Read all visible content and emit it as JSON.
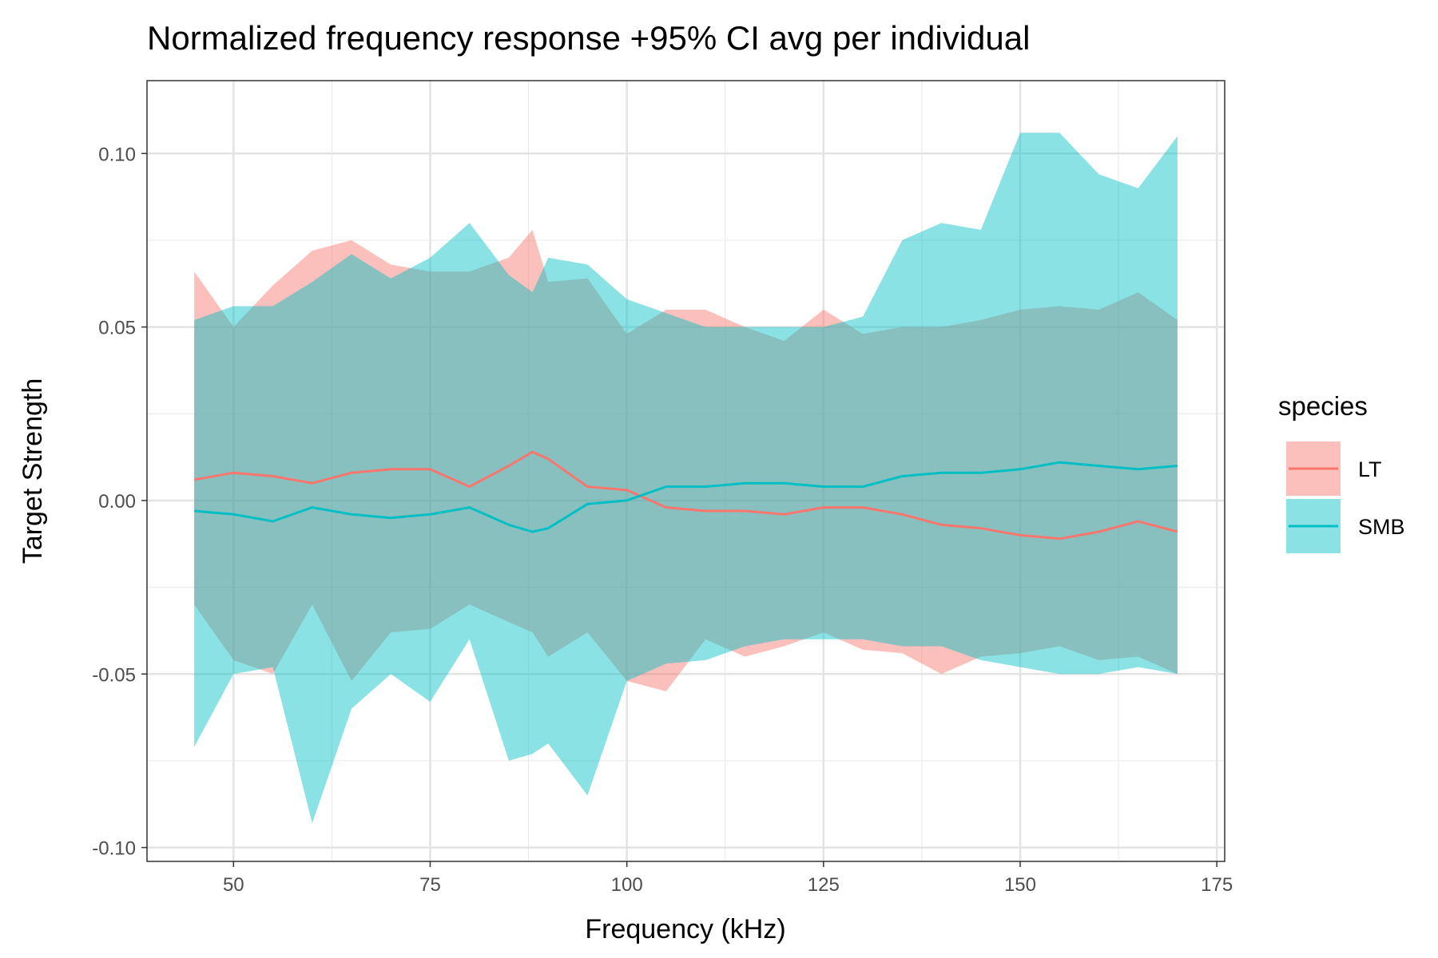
{
  "chart_data": {
    "type": "area",
    "title": "Normalized frequency response +95% CI avg per individual",
    "xlabel": "Frequency (kHz)",
    "ylabel": "Target Strength",
    "xlim": [
      39,
      176
    ],
    "ylim": [
      -0.104,
      0.121
    ],
    "x_ticks": [
      50,
      75,
      100,
      125,
      150,
      175
    ],
    "x_tick_labels": [
      "50",
      "75",
      "100",
      "125",
      "150",
      "175"
    ],
    "y_ticks": [
      -0.1,
      -0.05,
      0.0,
      0.05,
      0.1
    ],
    "y_tick_labels": [
      "-0.10",
      "-0.05",
      "0.00",
      "0.05",
      "0.10"
    ],
    "grid": true,
    "legend": {
      "title": "species",
      "position": "right"
    },
    "x": [
      45,
      50,
      55,
      60,
      65,
      70,
      75,
      80,
      85,
      88,
      90,
      95,
      100,
      105,
      110,
      115,
      120,
      125,
      130,
      135,
      140,
      145,
      150,
      155,
      160,
      165,
      170
    ],
    "series": [
      {
        "name": "LT",
        "color": "#F8766D",
        "mean": [
          0.006,
          0.008,
          0.007,
          0.005,
          0.008,
          0.009,
          0.009,
          0.004,
          0.01,
          0.014,
          0.012,
          0.004,
          0.003,
          -0.002,
          -0.003,
          -0.003,
          -0.004,
          -0.002,
          -0.002,
          -0.004,
          -0.007,
          -0.008,
          -0.01,
          -0.011,
          -0.009,
          -0.006,
          -0.009
        ],
        "upper": [
          0.066,
          0.05,
          0.062,
          0.072,
          0.075,
          0.068,
          0.066,
          0.066,
          0.07,
          0.078,
          0.063,
          0.064,
          0.048,
          0.055,
          0.055,
          0.05,
          0.046,
          0.055,
          0.048,
          0.05,
          0.05,
          0.052,
          0.055,
          0.056,
          0.055,
          0.06,
          0.052
        ],
        "lower": [
          -0.03,
          -0.046,
          -0.05,
          -0.03,
          -0.052,
          -0.038,
          -0.037,
          -0.03,
          -0.035,
          -0.038,
          -0.045,
          -0.038,
          -0.052,
          -0.055,
          -0.04,
          -0.045,
          -0.042,
          -0.038,
          -0.043,
          -0.044,
          -0.05,
          -0.045,
          -0.044,
          -0.042,
          -0.046,
          -0.045,
          -0.05
        ]
      },
      {
        "name": "SMB",
        "color": "#00BFC4",
        "mean": [
          -0.003,
          -0.004,
          -0.006,
          -0.002,
          -0.004,
          -0.005,
          -0.004,
          -0.002,
          -0.007,
          -0.009,
          -0.008,
          -0.001,
          0.0,
          0.004,
          0.004,
          0.005,
          0.005,
          0.004,
          0.004,
          0.007,
          0.008,
          0.008,
          0.009,
          0.011,
          0.01,
          0.009,
          0.01
        ],
        "upper": [
          0.052,
          0.056,
          0.056,
          0.063,
          0.071,
          0.064,
          0.07,
          0.08,
          0.065,
          0.06,
          0.07,
          0.068,
          0.058,
          0.054,
          0.05,
          0.05,
          0.05,
          0.05,
          0.053,
          0.075,
          0.08,
          0.078,
          0.106,
          0.106,
          0.094,
          0.09,
          0.105
        ],
        "lower": [
          -0.071,
          -0.05,
          -0.048,
          -0.093,
          -0.06,
          -0.05,
          -0.058,
          -0.04,
          -0.075,
          -0.073,
          -0.07,
          -0.085,
          -0.052,
          -0.047,
          -0.046,
          -0.042,
          -0.04,
          -0.04,
          -0.04,
          -0.042,
          -0.042,
          -0.046,
          -0.048,
          -0.05,
          -0.05,
          -0.048,
          -0.05
        ]
      }
    ]
  }
}
